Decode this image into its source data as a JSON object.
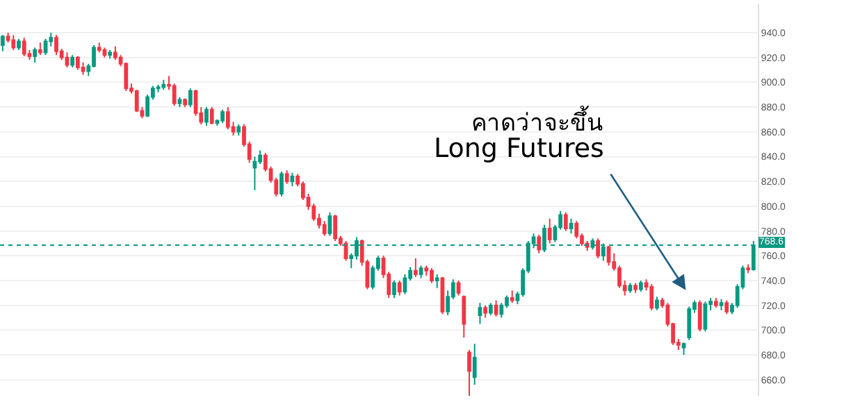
{
  "chart_data": {
    "type": "candlestick",
    "categories": [
      null,
      null,
      null,
      null,
      null,
      null,
      null,
      null,
      null,
      null,
      null,
      null,
      null,
      null,
      null,
      null,
      null,
      null,
      null,
      null,
      null,
      null,
      null,
      null,
      null,
      null,
      null,
      null,
      null,
      null,
      null,
      null,
      null,
      null,
      null,
      null,
      null,
      null,
      null,
      null,
      null,
      null,
      null,
      null,
      null,
      null,
      null,
      null,
      null,
      null,
      null,
      null,
      null,
      null,
      null,
      null,
      null,
      null,
      null,
      null,
      null,
      null,
      null,
      null,
      null,
      null,
      null,
      null,
      null,
      null,
      null,
      null,
      null,
      null,
      null,
      null,
      null,
      null,
      null,
      null,
      null,
      null,
      null,
      null,
      null,
      null,
      null,
      null,
      null,
      null,
      null,
      null,
      null,
      null,
      null,
      null,
      null,
      null,
      null,
      null,
      null,
      null,
      null,
      null,
      null,
      null,
      null,
      null,
      null,
      null,
      null,
      null,
      null,
      null,
      null,
      null,
      null,
      null,
      null,
      null,
      null,
      null,
      null,
      null,
      null,
      null,
      null,
      null,
      null,
      null,
      null,
      null,
      null,
      null,
      null,
      null,
      null,
      null,
      null,
      null,
      null
    ],
    "ohlc": [
      [
        930,
        938,
        925,
        937
      ],
      [
        937,
        940,
        932,
        934
      ],
      [
        934,
        938,
        926,
        928
      ],
      [
        928,
        935,
        926,
        933
      ],
      [
        933,
        936,
        921,
        923
      ],
      [
        923,
        926,
        918,
        921
      ],
      [
        921,
        928,
        916,
        926
      ],
      [
        926,
        932,
        922,
        924
      ],
      [
        924,
        935,
        922,
        933
      ],
      [
        933,
        940,
        929,
        936
      ],
      [
        936,
        938,
        922,
        925
      ],
      [
        925,
        927,
        918,
        920
      ],
      [
        920,
        924,
        912,
        914
      ],
      [
        914,
        922,
        912,
        920
      ],
      [
        920,
        921,
        910,
        912
      ],
      [
        912,
        916,
        906,
        909
      ],
      [
        909,
        915,
        905,
        913
      ],
      [
        913,
        930,
        912,
        928
      ],
      [
        928,
        932,
        924,
        926
      ],
      [
        926,
        928,
        920,
        922
      ],
      [
        922,
        926,
        919,
        924
      ],
      [
        924,
        929,
        918,
        920
      ],
      [
        920,
        922,
        913,
        915
      ],
      [
        915,
        916,
        893,
        895
      ],
      [
        895,
        899,
        891,
        893
      ],
      [
        893,
        894,
        876,
        877
      ],
      [
        877,
        880,
        871,
        873
      ],
      [
        873,
        890,
        872,
        888
      ],
      [
        888,
        897,
        886,
        895
      ],
      [
        895,
        898,
        892,
        896
      ],
      [
        896,
        902,
        894,
        898
      ],
      [
        898,
        905,
        894,
        897
      ],
      [
        897,
        899,
        881,
        883
      ],
      [
        883,
        888,
        880,
        886
      ],
      [
        886,
        887,
        880,
        882
      ],
      [
        882,
        895,
        880,
        893
      ],
      [
        893,
        894,
        873,
        875
      ],
      [
        875,
        880,
        866,
        868
      ],
      [
        868,
        880,
        865,
        878
      ],
      [
        878,
        880,
        866,
        867
      ],
      [
        867,
        870,
        865,
        869
      ],
      [
        869,
        878,
        867,
        876
      ],
      [
        876,
        880,
        862,
        864
      ],
      [
        864,
        868,
        857,
        860
      ],
      [
        860,
        866,
        857,
        864
      ],
      [
        864,
        866,
        848,
        850
      ],
      [
        850,
        852,
        835,
        838
      ],
      [
        831,
        840,
        813,
        836
      ],
      [
        836,
        845,
        834,
        841
      ],
      [
        841,
        843,
        828,
        830
      ],
      [
        830,
        832,
        819,
        821
      ],
      [
        821,
        823,
        808,
        810
      ],
      [
        810,
        828,
        808,
        826
      ],
      [
        826,
        829,
        818,
        820
      ],
      [
        820,
        827,
        816,
        824
      ],
      [
        824,
        826,
        816,
        818
      ],
      [
        818,
        820,
        805,
        807
      ],
      [
        807,
        810,
        797,
        800
      ],
      [
        800,
        802,
        788,
        790
      ],
      [
        790,
        794,
        782,
        785
      ],
      [
        785,
        788,
        776,
        778
      ],
      [
        778,
        795,
        776,
        792
      ],
      [
        792,
        793,
        772,
        774
      ],
      [
        774,
        776,
        768,
        770
      ],
      [
        770,
        772,
        756,
        758
      ],
      [
        758,
        762,
        750,
        760
      ],
      [
        760,
        775,
        757,
        772
      ],
      [
        772,
        773,
        752,
        755
      ],
      [
        755,
        757,
        733,
        735
      ],
      [
        735,
        752,
        733,
        750
      ],
      [
        750,
        760,
        748,
        758
      ],
      [
        758,
        760,
        742,
        745
      ],
      [
        745,
        747,
        726,
        729
      ],
      [
        729,
        740,
        726,
        738
      ],
      [
        738,
        740,
        728,
        731
      ],
      [
        731,
        745,
        729,
        742
      ],
      [
        742,
        751,
        740,
        748
      ],
      [
        748,
        758,
        743,
        745
      ],
      [
        745,
        752,
        742,
        750
      ],
      [
        750,
        752,
        744,
        748
      ],
      [
        748,
        750,
        738,
        740
      ],
      [
        740,
        745,
        734,
        742
      ],
      [
        742,
        743,
        713,
        715
      ],
      [
        715,
        732,
        712,
        727
      ],
      [
        727,
        741,
        725,
        738
      ],
      [
        738,
        740,
        728,
        730
      ],
      [
        727,
        728,
        694,
        705
      ],
      [
        682,
        684,
        647,
        667
      ],
      [
        662,
        689,
        656,
        678
      ],
      [
        712,
        722,
        705,
        718
      ],
      [
        718,
        720,
        710,
        714
      ],
      [
        714,
        722,
        712,
        720
      ],
      [
        720,
        724,
        711,
        713
      ],
      [
        713,
        722,
        710,
        720
      ],
      [
        720,
        728,
        718,
        726
      ],
      [
        726,
        732,
        722,
        724
      ],
      [
        724,
        731,
        721,
        729
      ],
      [
        729,
        750,
        727,
        748
      ],
      [
        748,
        772,
        746,
        770
      ],
      [
        770,
        778,
        766,
        775
      ],
      [
        775,
        777,
        762,
        765
      ],
      [
        765,
        785,
        763,
        782
      ],
      [
        782,
        790,
        770,
        773
      ],
      [
        773,
        785,
        771,
        783
      ],
      [
        783,
        796,
        781,
        793
      ],
      [
        793,
        795,
        780,
        782
      ],
      [
        782,
        790,
        778,
        786
      ],
      [
        786,
        788,
        774,
        776
      ],
      [
        776,
        778,
        768,
        770
      ],
      [
        770,
        772,
        764,
        767
      ],
      [
        767,
        774,
        765,
        772
      ],
      [
        772,
        774,
        758,
        760
      ],
      [
        760,
        770,
        756,
        767
      ],
      [
        767,
        768,
        752,
        755
      ],
      [
        755,
        762,
        748,
        750
      ],
      [
        750,
        752,
        734,
        736
      ],
      [
        736,
        740,
        728,
        732
      ],
      [
        732,
        738,
        730,
        736
      ],
      [
        736,
        738,
        730,
        733
      ],
      [
        733,
        740,
        731,
        738
      ],
      [
        738,
        741,
        732,
        735
      ],
      [
        735,
        737,
        716,
        718
      ],
      [
        718,
        727,
        716,
        724
      ],
      [
        724,
        726,
        718,
        720
      ],
      [
        720,
        722,
        703,
        705
      ],
      [
        705,
        706,
        688,
        690
      ],
      [
        690,
        693,
        684,
        688
      ],
      [
        686,
        690,
        680,
        689
      ],
      [
        694,
        719,
        692,
        717
      ],
      [
        717,
        724,
        714,
        722
      ],
      [
        722,
        724,
        699,
        701
      ],
      [
        701,
        723,
        699,
        721
      ],
      [
        721,
        726,
        716,
        723
      ],
      [
        723,
        726,
        718,
        720
      ],
      [
        720,
        725,
        716,
        722
      ],
      [
        722,
        724,
        713,
        715
      ],
      [
        715,
        722,
        713,
        720
      ],
      [
        720,
        737,
        718,
        735
      ],
      [
        735,
        752,
        733,
        750
      ],
      [
        750,
        753,
        746,
        749
      ],
      [
        749,
        772,
        748,
        768.6
      ]
    ],
    "ylim": [
      647,
      963
    ],
    "yticks": [
      {
        "value": 660,
        "label": "660.0"
      },
      {
        "value": 680,
        "label": "680.0"
      },
      {
        "value": 700,
        "label": "700.0"
      },
      {
        "value": 720,
        "label": "720.0"
      },
      {
        "value": 740,
        "label": "740.0"
      },
      {
        "value": 760,
        "label": "760.0"
      },
      {
        "value": 780,
        "label": "780.0"
      },
      {
        "value": 800,
        "label": "800.0"
      },
      {
        "value": 820,
        "label": "820.0"
      },
      {
        "value": 840,
        "label": "840.0"
      },
      {
        "value": 860,
        "label": "860.0"
      },
      {
        "value": 880,
        "label": "880.0"
      },
      {
        "value": 900,
        "label": "900.0"
      },
      {
        "value": 920,
        "label": "920.0"
      },
      {
        "value": 940,
        "label": "940.0"
      }
    ],
    "grid": "y",
    "ref_lines": [
      {
        "axis": "y",
        "value": 768.6,
        "label": "768.6",
        "color": "#089981",
        "line_style": "dotted"
      }
    ],
    "annotations": [
      "คาดว่าจะขึ้น",
      "Long Futures"
    ]
  }
}
